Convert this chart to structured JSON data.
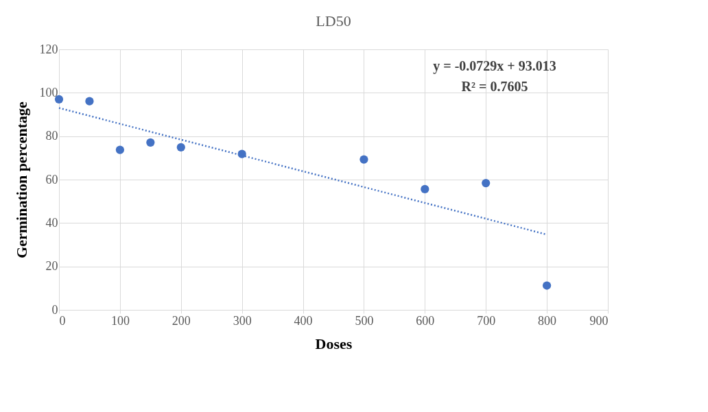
{
  "chart_data": {
    "type": "scatter",
    "title": "LD50",
    "xlabel": "Doses",
    "ylabel": "Germination percentage",
    "x": [
      0,
      50,
      100,
      150,
      200,
      300,
      500,
      600,
      700,
      800
    ],
    "series": [
      {
        "color": "#4472c4",
        "marker": "circle",
        "values": [
          97.0,
          96.1,
          73.7,
          77.1,
          74.9,
          71.8,
          69.3,
          55.6,
          58.4,
          11.2
        ]
      },
      {
        "type": "line",
        "color": "#4472c4",
        "line_style": "dotted",
        "x": [
          0,
          800
        ],
        "values": [
          93.0,
          34.7
        ]
      }
    ],
    "xlim": [
      0,
      900
    ],
    "xticks": [
      0,
      100,
      200,
      300,
      400,
      500,
      600,
      700,
      800,
      900
    ],
    "ylim": [
      0,
      120
    ],
    "yticks": [
      0,
      20,
      40,
      60,
      80,
      100,
      120
    ],
    "grid": true,
    "annotations": [
      "y = -0.0729x + 93.013",
      "R² = 0.7605"
    ]
  }
}
